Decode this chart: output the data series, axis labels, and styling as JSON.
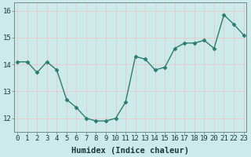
{
  "x": [
    0,
    1,
    2,
    3,
    4,
    5,
    6,
    7,
    8,
    9,
    10,
    11,
    12,
    13,
    14,
    15,
    16,
    17,
    18,
    19,
    20,
    21,
    22,
    23
  ],
  "y": [
    14.1,
    14.1,
    13.7,
    14.1,
    13.8,
    12.7,
    12.4,
    12.0,
    11.9,
    11.9,
    12.0,
    12.6,
    14.3,
    14.2,
    13.8,
    13.9,
    14.6,
    14.8,
    14.8,
    14.9,
    14.6,
    15.85,
    15.5,
    15.1
  ],
  "line_color": "#2d7d6e",
  "marker": "D",
  "marker_size": 2.5,
  "bg_color": "#cceaea",
  "grid_color_v": "#e8c8c8",
  "grid_color_h": "#e8c8c8",
  "xlabel": "Humidex (Indice chaleur)",
  "ylim": [
    11.5,
    16.3
  ],
  "yticks": [
    12,
    13,
    14,
    15,
    16
  ],
  "xticks": [
    0,
    1,
    2,
    3,
    4,
    5,
    6,
    7,
    8,
    9,
    10,
    11,
    12,
    13,
    14,
    15,
    16,
    17,
    18,
    19,
    20,
    21,
    22,
    23
  ],
  "tick_fontsize": 6.5,
  "xlabel_fontsize": 7.5,
  "line_width": 1.0,
  "xlim": [
    -0.3,
    23.3
  ]
}
